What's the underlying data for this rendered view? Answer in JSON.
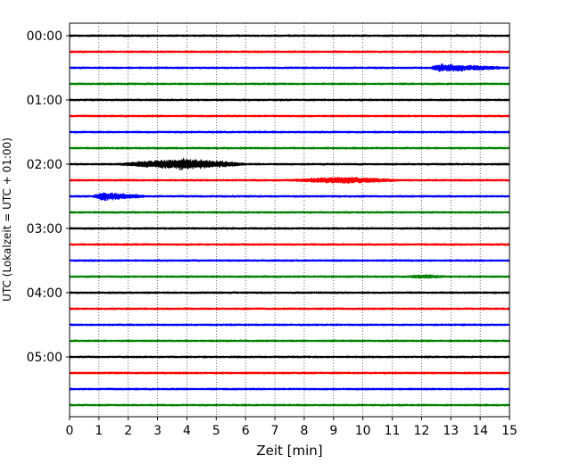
{
  "chart_data": {
    "type": "line",
    "subtype": "helicorder (seismogram drum plot)",
    "xlabel": "Zeit  [min]",
    "ylabel": "UTC (Lokalzeit = UTC + 01:00)",
    "xlim": [
      0,
      15
    ],
    "x_ticks": [
      0,
      1,
      2,
      3,
      4,
      5,
      6,
      7,
      8,
      9,
      10,
      11,
      12,
      13,
      14,
      15
    ],
    "y_tick_labels": [
      "00:00",
      "01:00",
      "02:00",
      "03:00",
      "04:00",
      "05:00"
    ],
    "y_tick_rows": [
      0,
      4,
      8,
      12,
      16,
      20
    ],
    "rows": 24,
    "minutes_per_row": 15,
    "trace_colors": [
      "#000000",
      "#ff0000",
      "#0000ff",
      "#008000"
    ],
    "grid": "vertical dotted at each minute",
    "events": [
      {
        "row": 2,
        "start_min": 12.3,
        "peak_min": 12.6,
        "end_min": 15.0,
        "amplitude": 0.55
      },
      {
        "row": 8,
        "start_min": 1.7,
        "peak_min": 3.9,
        "end_min": 6.0,
        "amplitude": 0.85
      },
      {
        "row": 9,
        "start_min": 7.5,
        "peak_min": 9.3,
        "end_min": 11.2,
        "amplitude": 0.45
      },
      {
        "row": 10,
        "start_min": 0.8,
        "peak_min": 1.1,
        "end_min": 2.6,
        "amplitude": 0.65
      },
      {
        "row": 15,
        "start_min": 11.6,
        "peak_min": 12.0,
        "end_min": 12.8,
        "amplitude": 0.25
      }
    ],
    "noise_amplitude": 0.12
  }
}
